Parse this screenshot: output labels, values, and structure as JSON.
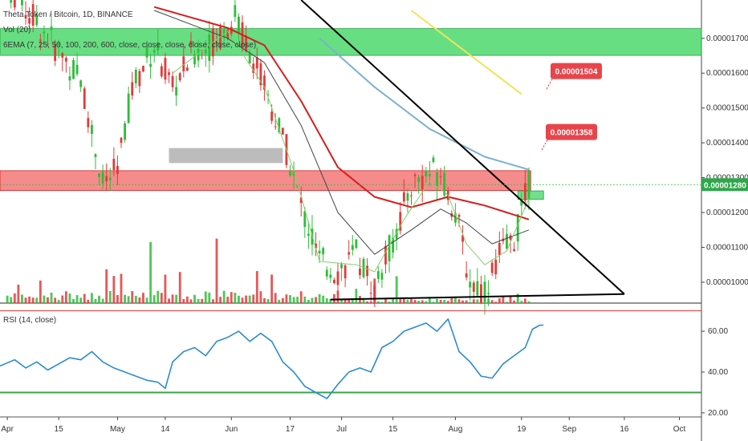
{
  "header": {
    "symbol_line": "Theta Token / Bitcoin, 1D, BINANCE",
    "vol_line": "Vol (20)",
    "ema_line": "6EMA (7, 25, 50, 100, 200, 600, close, close, close, close, close, close)"
  },
  "rsi": {
    "label": "RSI (14, close)"
  },
  "callouts": [
    {
      "text": "0.00001504",
      "price": 1.56e-05
    },
    {
      "text": "0.00001358",
      "price": 1.385e-05
    }
  ],
  "last_price": {
    "text": "0.00001280",
    "value": 1.28e-05
  },
  "colors": {
    "up": "#2fbd3a",
    "down": "#e23b3b",
    "ema7": "#7fd36a",
    "ema25": "#444444",
    "ema50": "#d81b1b",
    "ema100": "#7ab2cf",
    "ema200": "#f2e35a",
    "zone_green": "#35d35a",
    "zone_red": "#f25a5a",
    "zone_grey": "#a0a0a0",
    "rsi": "#2b8cd1",
    "rsi_upper": "#e03030",
    "rsi_lower": "#3aa04a"
  },
  "chart_data": [
    {
      "type": "candlestick",
      "title": "Theta Token / Bitcoin, 1D, BINANCE",
      "price_axis_ticks": [
        "0.00001700",
        "0.00001600",
        "0.00001500",
        "0.00001400",
        "0.00001300",
        "0.00001200",
        "0.00001100",
        "0.00001000"
      ],
      "price_tick_values": [
        1.7e-05,
        1.6e-05,
        1.5e-05,
        1.4e-05,
        1.3e-05,
        1.2e-05,
        1.1e-05,
        1e-05
      ],
      "ylim": [
        9.4e-06,
        1.81e-05
      ],
      "x_axis_ticks": [
        "Apr",
        "15",
        "May",
        "14",
        "Jun",
        "17",
        "Jul",
        "15",
        "Aug",
        "19",
        "Sep",
        "16",
        "Oct"
      ],
      "x_tick_days": [
        0,
        14,
        30,
        43,
        61,
        77,
        91,
        105,
        122,
        140,
        153,
        168,
        183
      ],
      "x_range_days": [
        -2,
        189
      ],
      "last_candle_day": 142,
      "zones": [
        {
          "name": "green-resistance",
          "from": 1.651e-05,
          "to": 1.728e-05
        },
        {
          "name": "red-resistance",
          "from": 1.263e-05,
          "to": 1.32e-05
        },
        {
          "name": "grey-box",
          "from": 1.342e-05,
          "to": 1.385e-05,
          "day_start": 44,
          "day_end": 75
        },
        {
          "name": "small-green-box",
          "from": 1.238e-05,
          "to": 1.262e-05,
          "day_start": 139,
          "day_end": 146
        }
      ],
      "trendlines": [
        {
          "name": "descending",
          "from": [
            80,
            1.81e-05
          ],
          "to": [
            168,
            9.66e-06
          ]
        },
        {
          "name": "support",
          "from": [
            88,
            9.5e-06
          ],
          "to": [
            168,
            9.66e-06
          ]
        }
      ],
      "ema_points": {
        "ema200": [
          [
            110,
            1.78e-05
          ],
          [
            140,
            1.54e-05
          ]
        ],
        "ema100": [
          [
            85,
            1.7e-05
          ],
          [
            100,
            1.56e-05
          ],
          [
            115,
            1.44e-05
          ],
          [
            130,
            1.36e-05
          ],
          [
            142,
            1.323e-05
          ]
        ],
        "ema50": [
          [
            40,
            1.79e-05
          ],
          [
            60,
            1.73e-05
          ],
          [
            70,
            1.68e-05
          ],
          [
            80,
            1.52e-05
          ],
          [
            90,
            1.33e-05
          ],
          [
            100,
            1.245e-05
          ],
          [
            110,
            1.215e-05
          ],
          [
            120,
            1.245e-05
          ],
          [
            130,
            1.22e-05
          ],
          [
            142,
            1.18e-05
          ]
        ],
        "ema25": [
          [
            40,
            1.78e-05
          ],
          [
            60,
            1.7e-05
          ],
          [
            70,
            1.63e-05
          ],
          [
            80,
            1.45e-05
          ],
          [
            90,
            1.2e-05
          ],
          [
            100,
            1.08e-05
          ],
          [
            110,
            1.15e-05
          ],
          [
            118,
            1.21e-05
          ],
          [
            125,
            1.17e-05
          ],
          [
            132,
            1.11e-05
          ],
          [
            142,
            1.15e-05
          ]
        ],
        "ema7": [
          [
            45,
            1.6e-05
          ],
          [
            60,
            1.72e-05
          ],
          [
            70,
            1.56e-05
          ],
          [
            78,
            1.32e-05
          ],
          [
            85,
            1.06e-05
          ],
          [
            95,
            1.05e-05
          ],
          [
            100,
            1.03e-05
          ],
          [
            108,
            1.18e-05
          ],
          [
            115,
            1.29e-05
          ],
          [
            120,
            1.25e-05
          ],
          [
            125,
            1.11e-05
          ],
          [
            130,
            1.05e-05
          ],
          [
            136,
            1.09e-05
          ],
          [
            142,
            1.24e-05
          ]
        ]
      }
    },
    {
      "type": "line",
      "title": "RSI (14, close)",
      "y_axis_ticks": [
        "60.00",
        "40.00",
        "20.00"
      ],
      "y_tick_values": [
        60,
        40,
        20
      ],
      "ylim": [
        18,
        73
      ],
      "levels": [
        70,
        30
      ],
      "series": [
        {
          "values": [
            [
              -2,
              43
            ],
            [
              2,
              46
            ],
            [
              5,
              42
            ],
            [
              8,
              45
            ],
            [
              11,
              41
            ],
            [
              14,
              44
            ],
            [
              17,
              47
            ],
            [
              20,
              46
            ],
            [
              23,
              50
            ],
            [
              26,
              45
            ],
            [
              29,
              42
            ],
            [
              32,
              40
            ],
            [
              35,
              38
            ],
            [
              38,
              36
            ],
            [
              41,
              35
            ],
            [
              43,
              32
            ],
            [
              45,
              45
            ],
            [
              48,
              50
            ],
            [
              51,
              52
            ],
            [
              54,
              48
            ],
            [
              57,
              55
            ],
            [
              60,
              57
            ],
            [
              63,
              60
            ],
            [
              66,
              55
            ],
            [
              69,
              59
            ],
            [
              72,
              55
            ],
            [
              75,
              45
            ],
            [
              78,
              40
            ],
            [
              81,
              33
            ],
            [
              84,
              30
            ],
            [
              87,
              27
            ],
            [
              90,
              34
            ],
            [
              93,
              40
            ],
            [
              96,
              42
            ],
            [
              99,
              40
            ],
            [
              102,
              52
            ],
            [
              105,
              55
            ],
            [
              108,
              60
            ],
            [
              111,
              62
            ],
            [
              114,
              64
            ],
            [
              117,
              60
            ],
            [
              120,
              66
            ],
            [
              123,
              50
            ],
            [
              126,
              45
            ],
            [
              129,
              38
            ],
            [
              132,
              37
            ],
            [
              135,
              44
            ],
            [
              138,
              48
            ],
            [
              141,
              52
            ],
            [
              143,
              61
            ],
            [
              145,
              63
            ],
            [
              146,
              63
            ]
          ]
        }
      ]
    }
  ]
}
